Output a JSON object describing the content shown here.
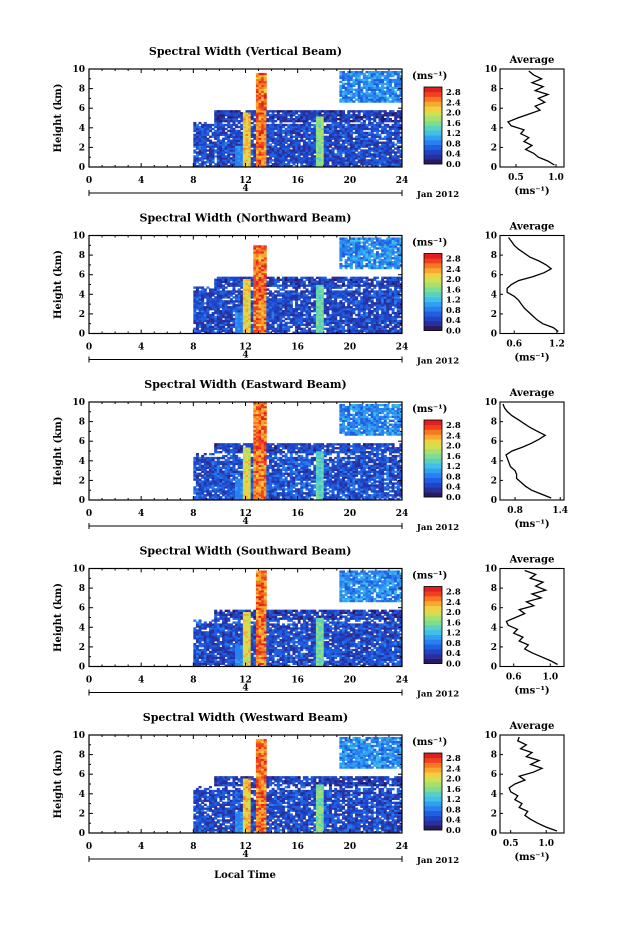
{
  "figure": {
    "xlabel": "Local Time",
    "date_label": "Jan 2012",
    "day_label": "4",
    "average_title": "Average",
    "colorbar_unit": "(ms⁻¹)",
    "average_xlabel": "(ms⁻¹)"
  },
  "colors": {
    "colormap": [
      "#2a1a66",
      "#2b2f9a",
      "#1d45c8",
      "#1f5fe0",
      "#2a7ff0",
      "#30a0f0",
      "#40c0e8",
      "#5ad0c0",
      "#80dc90",
      "#a8e070",
      "#d0e050",
      "#f0d040",
      "#f8a830",
      "#f87820",
      "#f04020",
      "#e02020"
    ]
  },
  "chart_data": [
    {
      "type": "heatmap",
      "title": "Spectral Width (Vertical Beam)",
      "ylabel": "Height (km)",
      "xlim": [
        0,
        24
      ],
      "ylim": [
        0,
        10
      ],
      "xticks": [
        0,
        4,
        8,
        12,
        16,
        20,
        24
      ],
      "yticks": [
        0,
        2,
        4,
        6,
        8,
        10
      ],
      "colorbar_ticks": [
        "2.8",
        "2.4",
        "2.0",
        "1.6",
        "1.2",
        "0.8",
        "0.4",
        "0.0"
      ],
      "avg_profile": {
        "xlim": [
          0.3,
          1.1
        ],
        "xticks": [
          0.5,
          1.0
        ],
        "xticklabels": [
          "0.5",
          "1.0"
        ],
        "points": [
          [
            0.98,
            0.2
          ],
          [
            0.9,
            0.6
          ],
          [
            0.78,
            1.0
          ],
          [
            0.72,
            1.4
          ],
          [
            0.62,
            1.8
          ],
          [
            0.7,
            2.2
          ],
          [
            0.6,
            2.6
          ],
          [
            0.66,
            3.0
          ],
          [
            0.56,
            3.4
          ],
          [
            0.6,
            3.8
          ],
          [
            0.44,
            4.2
          ],
          [
            0.4,
            4.6
          ],
          [
            0.52,
            5.0
          ],
          [
            0.66,
            5.4
          ],
          [
            0.8,
            5.8
          ],
          [
            0.74,
            6.2
          ],
          [
            0.86,
            6.6
          ],
          [
            0.78,
            7.0
          ],
          [
            0.9,
            7.4
          ],
          [
            0.74,
            7.8
          ],
          [
            0.84,
            8.2
          ],
          [
            0.7,
            8.6
          ],
          [
            0.82,
            9.0
          ],
          [
            0.72,
            9.4
          ],
          [
            0.66,
            9.8
          ]
        ]
      },
      "events": [
        [
          13,
          9.5,
          0.4,
          2.9
        ],
        [
          12,
          5.5,
          0.3,
          2.5
        ],
        [
          17.5,
          5.2,
          0.3,
          1.9
        ],
        [
          11.5,
          2.0,
          0.5,
          1.0
        ]
      ],
      "bands": [
        [
          8,
          23.8,
          0,
          4.6,
          0.5
        ],
        [
          9.5,
          23.8,
          4.6,
          5.8,
          0.4
        ],
        [
          19,
          23.8,
          6.6,
          9.6,
          0.9
        ]
      ]
    },
    {
      "type": "heatmap",
      "title": "Spectral Width (Northward Beam)",
      "ylabel": "Height (km)",
      "xlim": [
        0,
        24
      ],
      "ylim": [
        0,
        10
      ],
      "xticks": [
        0,
        4,
        8,
        12,
        16,
        20,
        24
      ],
      "yticks": [
        0,
        2,
        4,
        6,
        8,
        10
      ],
      "colorbar_ticks": [
        "2.8",
        "2.4",
        "2.0",
        "1.6",
        "1.2",
        "0.8",
        "0.4",
        "0.0"
      ],
      "avg_profile": {
        "xlim": [
          0.4,
          1.3
        ],
        "xticks": [
          0.6,
          1.2
        ],
        "xticklabels": [
          "0.6",
          "1.2"
        ],
        "points": [
          [
            1.22,
            0.2
          ],
          [
            1.15,
            0.6
          ],
          [
            1.0,
            1.0
          ],
          [
            0.92,
            1.4
          ],
          [
            0.86,
            1.8
          ],
          [
            0.8,
            2.2
          ],
          [
            0.74,
            2.6
          ],
          [
            0.7,
            3.0
          ],
          [
            0.66,
            3.4
          ],
          [
            0.6,
            3.8
          ],
          [
            0.5,
            4.2
          ],
          [
            0.5,
            4.6
          ],
          [
            0.56,
            5.0
          ],
          [
            0.66,
            5.4
          ],
          [
            0.86,
            5.8
          ],
          [
            1.02,
            6.2
          ],
          [
            1.12,
            6.6
          ],
          [
            1.05,
            7.0
          ],
          [
            0.95,
            7.4
          ],
          [
            0.82,
            7.8
          ],
          [
            0.74,
            8.2
          ],
          [
            0.66,
            8.6
          ],
          [
            0.6,
            9.0
          ],
          [
            0.56,
            9.4
          ],
          [
            0.52,
            9.8
          ]
        ]
      },
      "events": [
        [
          13,
          9.0,
          0.45,
          2.9
        ],
        [
          12,
          5.5,
          0.3,
          2.4
        ],
        [
          17.5,
          5.0,
          0.3,
          1.7
        ],
        [
          11.5,
          2.0,
          0.5,
          1.0
        ]
      ],
      "bands": [
        [
          8,
          23.8,
          0,
          4.8,
          0.5
        ],
        [
          9.5,
          23.8,
          4.8,
          5.8,
          0.45
        ],
        [
          19,
          23.8,
          6.6,
          9.6,
          0.9
        ]
      ]
    },
    {
      "type": "heatmap",
      "title": "Spectral Width (Eastward Beam)",
      "ylabel": "Height (km)",
      "xlim": [
        0,
        24
      ],
      "ylim": [
        0,
        10
      ],
      "xticks": [
        0,
        4,
        8,
        12,
        16,
        20,
        24
      ],
      "yticks": [
        0,
        2,
        4,
        6,
        8,
        10
      ],
      "colorbar_ticks": [
        "2.8",
        "2.4",
        "2.0",
        "1.6",
        "1.2",
        "0.8",
        "0.4",
        "0.0"
      ],
      "avg_profile": {
        "xlim": [
          0.6,
          1.45
        ],
        "xticks": [
          0.8,
          1.4
        ],
        "xticklabels": [
          "0.8",
          "1.4"
        ],
        "points": [
          [
            1.28,
            0.2
          ],
          [
            1.15,
            0.6
          ],
          [
            1.02,
            1.0
          ],
          [
            0.94,
            1.4
          ],
          [
            0.88,
            1.8
          ],
          [
            0.82,
            2.2
          ],
          [
            0.82,
            2.6
          ],
          [
            0.8,
            3.0
          ],
          [
            0.74,
            3.4
          ],
          [
            0.72,
            3.8
          ],
          [
            0.7,
            4.2
          ],
          [
            0.68,
            4.6
          ],
          [
            0.76,
            5.0
          ],
          [
            0.9,
            5.4
          ],
          [
            1.02,
            5.8
          ],
          [
            1.12,
            6.2
          ],
          [
            1.2,
            6.6
          ],
          [
            1.1,
            7.0
          ],
          [
            1.0,
            7.4
          ],
          [
            0.92,
            7.8
          ],
          [
            0.84,
            8.2
          ],
          [
            0.76,
            8.6
          ],
          [
            0.7,
            9.0
          ],
          [
            0.66,
            9.4
          ],
          [
            0.64,
            9.8
          ]
        ]
      },
      "events": [
        [
          13,
          9.8,
          0.5,
          2.9
        ],
        [
          12,
          5.4,
          0.3,
          2.3
        ],
        [
          17.5,
          5.0,
          0.3,
          1.6
        ],
        [
          11.5,
          2.0,
          0.5,
          1.0
        ]
      ],
      "bands": [
        [
          8,
          23.8,
          0,
          4.8,
          0.55
        ],
        [
          9.5,
          23.8,
          4.8,
          5.8,
          0.45
        ],
        [
          19,
          23.8,
          6.6,
          9.6,
          0.9
        ]
      ]
    },
    {
      "type": "heatmap",
      "title": "Spectral Width (Southward Beam)",
      "ylabel": "Height (km)",
      "xlim": [
        0,
        24
      ],
      "ylim": [
        0,
        10
      ],
      "xticks": [
        0,
        4,
        8,
        12,
        16,
        20,
        24
      ],
      "yticks": [
        0,
        2,
        4,
        6,
        8,
        10
      ],
      "colorbar_ticks": [
        "2.8",
        "2.4",
        "2.0",
        "1.6",
        "1.2",
        "0.8",
        "0.4",
        "0.0"
      ],
      "avg_profile": {
        "xlim": [
          0.45,
          1.15
        ],
        "xticks": [
          0.6,
          1.0
        ],
        "xticklabels": [
          "0.6",
          "1.0"
        ],
        "points": [
          [
            1.08,
            0.2
          ],
          [
            1.0,
            0.6
          ],
          [
            0.9,
            1.0
          ],
          [
            0.8,
            1.4
          ],
          [
            0.72,
            1.8
          ],
          [
            0.76,
            2.2
          ],
          [
            0.66,
            2.6
          ],
          [
            0.7,
            3.0
          ],
          [
            0.6,
            3.4
          ],
          [
            0.64,
            3.8
          ],
          [
            0.54,
            4.2
          ],
          [
            0.52,
            4.6
          ],
          [
            0.62,
            5.0
          ],
          [
            0.72,
            5.4
          ],
          [
            0.66,
            5.8
          ],
          [
            0.82,
            6.2
          ],
          [
            0.74,
            6.6
          ],
          [
            0.9,
            7.0
          ],
          [
            0.8,
            7.4
          ],
          [
            0.95,
            7.8
          ],
          [
            0.84,
            8.2
          ],
          [
            0.92,
            8.6
          ],
          [
            0.78,
            9.0
          ],
          [
            0.84,
            9.4
          ],
          [
            0.72,
            9.8
          ]
        ]
      },
      "events": [
        [
          13,
          9.6,
          0.4,
          2.9
        ],
        [
          12,
          5.5,
          0.3,
          2.4
        ],
        [
          17.5,
          5.0,
          0.3,
          1.8
        ],
        [
          11.5,
          2.0,
          0.5,
          1.0
        ]
      ],
      "bands": [
        [
          8,
          23.8,
          0,
          4.8,
          0.5
        ],
        [
          9.5,
          23.8,
          4.8,
          5.8,
          0.4
        ],
        [
          19,
          23.8,
          6.6,
          9.6,
          0.9
        ]
      ]
    },
    {
      "type": "heatmap",
      "title": "Spectral Width (Westward Beam)",
      "ylabel": "Height (km)",
      "xlim": [
        0,
        24
      ],
      "ylim": [
        0,
        10
      ],
      "xticks": [
        0,
        4,
        8,
        12,
        16,
        20,
        24
      ],
      "yticks": [
        0,
        2,
        4,
        6,
        8,
        10
      ],
      "colorbar_ticks": [
        "2.8",
        "2.4",
        "2.0",
        "1.6",
        "1.2",
        "0.8",
        "0.4",
        "0.0"
      ],
      "avg_profile": {
        "xlim": [
          0.35,
          1.25
        ],
        "xticks": [
          0.5,
          1.0
        ],
        "xticklabels": [
          "0.5",
          "1.0"
        ],
        "points": [
          [
            1.15,
            0.2
          ],
          [
            1.0,
            0.6
          ],
          [
            0.88,
            1.0
          ],
          [
            0.78,
            1.4
          ],
          [
            0.7,
            1.8
          ],
          [
            0.74,
            2.2
          ],
          [
            0.62,
            2.6
          ],
          [
            0.66,
            3.0
          ],
          [
            0.56,
            3.4
          ],
          [
            0.6,
            3.8
          ],
          [
            0.5,
            4.2
          ],
          [
            0.48,
            4.6
          ],
          [
            0.56,
            5.0
          ],
          [
            0.7,
            5.4
          ],
          [
            0.62,
            5.8
          ],
          [
            0.82,
            6.2
          ],
          [
            0.94,
            6.6
          ],
          [
            0.78,
            7.0
          ],
          [
            0.9,
            7.4
          ],
          [
            0.72,
            7.8
          ],
          [
            0.8,
            8.2
          ],
          [
            0.64,
            8.6
          ],
          [
            0.72,
            9.0
          ],
          [
            0.6,
            9.4
          ],
          [
            0.62,
            9.8
          ]
        ]
      },
      "events": [
        [
          13,
          9.4,
          0.4,
          2.9
        ],
        [
          12,
          5.6,
          0.3,
          2.5
        ],
        [
          17.5,
          5.0,
          0.3,
          1.8
        ],
        [
          11.5,
          2.0,
          0.5,
          1.0
        ]
      ],
      "bands": [
        [
          8,
          23.8,
          0,
          4.8,
          0.5
        ],
        [
          9.5,
          23.8,
          4.8,
          5.8,
          0.4
        ],
        [
          19,
          23.8,
          6.6,
          9.6,
          0.9
        ]
      ]
    }
  ]
}
